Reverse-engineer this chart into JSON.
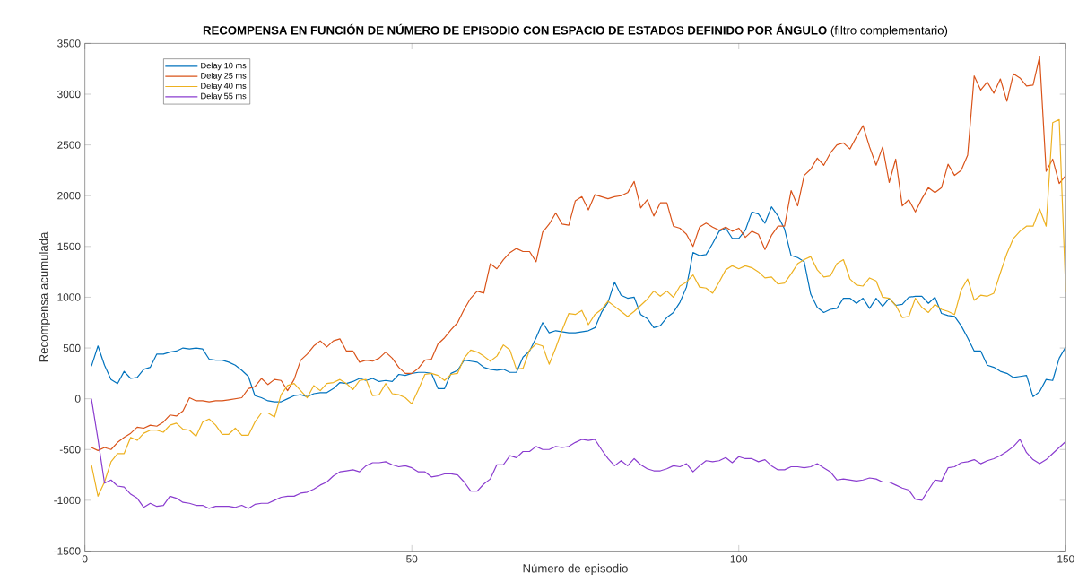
{
  "chart_data": {
    "type": "line",
    "title": "**RECOMPENSA EN FUNCIÓN DE NÚMERO DE EPISODIO CON ESPACIO DE ESTADOS DEFINIDO POR ÁNGULO** (filtro complementario)",
    "xlabel": "Número de episodio",
    "ylabel": "Recompensa acumulada",
    "x": [
      1,
      2,
      3,
      4,
      5,
      6,
      7,
      8,
      9,
      10,
      11,
      12,
      13,
      14,
      15,
      16,
      17,
      18,
      19,
      20,
      21,
      22,
      23,
      24,
      25,
      26,
      27,
      28,
      29,
      30,
      31,
      32,
      33,
      34,
      35,
      36,
      37,
      38,
      39,
      40,
      41,
      42,
      43,
      44,
      45,
      46,
      47,
      48,
      49,
      50,
      51,
      52,
      53,
      54,
      55,
      56,
      57,
      58,
      59,
      60,
      61,
      62,
      63,
      64,
      65,
      66,
      67,
      68,
      69,
      70,
      71,
      72,
      73,
      74,
      75,
      76,
      77,
      78,
      79,
      80,
      81,
      82,
      83,
      84,
      85,
      86,
      87,
      88,
      89,
      90,
      91,
      92,
      93,
      94,
      95,
      96,
      97,
      98,
      99,
      100,
      101,
      102,
      103,
      104,
      105,
      106,
      107,
      108,
      109,
      110,
      111,
      112,
      113,
      114,
      115,
      116,
      117,
      118,
      119,
      120,
      121,
      122,
      123,
      124,
      125,
      126,
      127,
      128,
      129,
      130,
      131,
      132,
      133,
      134,
      135,
      136,
      137,
      138,
      139,
      140,
      141,
      142,
      143,
      144,
      145,
      146,
      147,
      148,
      149,
      150
    ],
    "series": [
      {
        "name": "Delay 10 ms",
        "color": "#0072bd",
        "values": [
          320,
          520,
          330,
          190,
          150,
          270,
          200,
          210,
          290,
          310,
          440,
          440,
          460,
          470,
          500,
          490,
          500,
          490,
          390,
          380,
          380,
          360,
          330,
          280,
          220,
          30,
          10,
          -20,
          -30,
          -30,
          0,
          30,
          40,
          20,
          50,
          60,
          60,
          100,
          160,
          150,
          170,
          200,
          180,
          200,
          170,
          180,
          170,
          240,
          230,
          250,
          260,
          260,
          250,
          100,
          100,
          250,
          280,
          380,
          370,
          360,
          310,
          290,
          280,
          290,
          260,
          260,
          410,
          470,
          600,
          750,
          650,
          670,
          660,
          650,
          650,
          660,
          670,
          700,
          850,
          950,
          1150,
          1020,
          990,
          1000,
          830,
          790,
          700,
          720,
          800,
          850,
          950,
          1100,
          1440,
          1410,
          1420,
          1530,
          1650,
          1680,
          1580,
          1580,
          1660,
          1840,
          1820,
          1730,
          1890,
          1800,
          1670,
          1410,
          1390,
          1350,
          1030,
          900,
          850,
          880,
          890,
          990,
          990,
          940,
          990,
          890,
          990,
          910,
          990,
          920,
          930,
          1000,
          1010,
          1010,
          940,
          1000,
          840,
          820,
          810,
          720,
          600,
          470,
          470,
          330,
          310,
          270,
          250,
          210,
          220,
          230,
          20,
          70,
          190,
          180,
          400,
          510
        ]
      },
      {
        "name": "Delay 25 ms",
        "color": "#d95319",
        "values": [
          -480,
          -510,
          -480,
          -500,
          -430,
          -380,
          -340,
          -280,
          -290,
          -260,
          -270,
          -230,
          -160,
          -170,
          -120,
          10,
          -20,
          -20,
          -30,
          -20,
          -20,
          -10,
          0,
          10,
          100,
          120,
          200,
          140,
          190,
          180,
          80,
          190,
          380,
          440,
          520,
          570,
          510,
          570,
          590,
          470,
          470,
          360,
          380,
          370,
          400,
          460,
          400,
          310,
          250,
          250,
          300,
          380,
          390,
          540,
          600,
          680,
          750,
          880,
          990,
          1060,
          1040,
          1330,
          1280,
          1370,
          1440,
          1480,
          1450,
          1450,
          1350,
          1640,
          1720,
          1830,
          1720,
          1710,
          1950,
          1990,
          1860,
          2010,
          1990,
          1970,
          1990,
          2000,
          2030,
          2140,
          1880,
          1960,
          1800,
          1930,
          1930,
          1700,
          1680,
          1620,
          1500,
          1690,
          1730,
          1690,
          1660,
          1690,
          1650,
          1680,
          1590,
          1650,
          1620,
          1470,
          1610,
          1700,
          1700,
          2050,
          1900,
          2200,
          2260,
          2370,
          2300,
          2420,
          2500,
          2520,
          2460,
          2580,
          2690,
          2480,
          2300,
          2480,
          2130,
          2360,
          1900,
          1960,
          1840,
          1970,
          2080,
          2030,
          2080,
          2310,
          2200,
          2250,
          2400,
          3180,
          3040,
          3120,
          3010,
          3150,
          2930,
          3200,
          3160,
          3080,
          3090,
          3370,
          2240,
          2360,
          2120,
          2200
        ]
      },
      {
        "name": "Delay 40 ms",
        "color": "#edb120",
        "values": [
          -650,
          -960,
          -820,
          -620,
          -540,
          -540,
          -380,
          -410,
          -340,
          -310,
          -310,
          -330,
          -260,
          -240,
          -300,
          -310,
          -370,
          -230,
          -200,
          -260,
          -350,
          -350,
          -290,
          -360,
          -360,
          -230,
          -140,
          -140,
          -180,
          40,
          130,
          150,
          80,
          10,
          130,
          80,
          150,
          160,
          190,
          150,
          90,
          180,
          190,
          30,
          40,
          150,
          50,
          40,
          10,
          -50,
          90,
          240,
          250,
          230,
          180,
          240,
          250,
          400,
          480,
          460,
          420,
          370,
          420,
          530,
          480,
          290,
          300,
          480,
          540,
          520,
          340,
          500,
          680,
          840,
          830,
          870,
          730,
          830,
          880,
          960,
          910,
          860,
          810,
          860,
          920,
          980,
          1060,
          1010,
          1060,
          1000,
          1110,
          1150,
          1220,
          1100,
          1090,
          1040,
          1150,
          1270,
          1310,
          1280,
          1310,
          1290,
          1250,
          1190,
          1200,
          1130,
          1140,
          1230,
          1330,
          1370,
          1400,
          1270,
          1200,
          1210,
          1330,
          1370,
          1180,
          1120,
          1110,
          1190,
          1160,
          1000,
          990,
          920,
          800,
          810,
          990,
          900,
          850,
          930,
          880,
          860,
          830,
          1070,
          1180,
          970,
          1020,
          1010,
          1040,
          1240,
          1430,
          1580,
          1650,
          1700,
          1700,
          1870,
          1700,
          2720,
          2750,
          1050
        ]
      },
      {
        "name": "Delay 55 ms",
        "color": "#8a3ccf",
        "values": [
          0,
          -400,
          -830,
          -800,
          -860,
          -870,
          -940,
          -980,
          -1070,
          -1030,
          -1060,
          -1050,
          -960,
          -980,
          -1020,
          -1030,
          -1050,
          -1050,
          -1080,
          -1060,
          -1060,
          -1060,
          -1070,
          -1050,
          -1080,
          -1040,
          -1030,
          -1030,
          -1000,
          -970,
          -960,
          -960,
          -930,
          -920,
          -890,
          -850,
          -820,
          -760,
          -720,
          -710,
          -700,
          -720,
          -660,
          -630,
          -630,
          -620,
          -650,
          -670,
          -660,
          -680,
          -720,
          -720,
          -770,
          -760,
          -740,
          -740,
          -750,
          -820,
          -910,
          -910,
          -840,
          -790,
          -650,
          -650,
          -560,
          -580,
          -520,
          -520,
          -470,
          -500,
          -500,
          -470,
          -480,
          -470,
          -430,
          -400,
          -410,
          -400,
          -500,
          -590,
          -660,
          -610,
          -660,
          -590,
          -650,
          -690,
          -710,
          -710,
          -690,
          -660,
          -670,
          -640,
          -720,
          -660,
          -610,
          -620,
          -610,
          -580,
          -630,
          -570,
          -590,
          -590,
          -620,
          -600,
          -660,
          -700,
          -700,
          -670,
          -670,
          -680,
          -670,
          -640,
          -680,
          -720,
          -800,
          -790,
          -800,
          -810,
          -800,
          -780,
          -790,
          -820,
          -820,
          -850,
          -880,
          -900,
          -990,
          -1000,
          -900,
          -800,
          -810,
          -680,
          -670,
          -630,
          -620,
          -600,
          -640,
          -610,
          -590,
          -560,
          -520,
          -470,
          -400,
          -530,
          -600,
          -640,
          -600,
          -540,
          -480,
          -420
        ]
      }
    ],
    "xlim": [
      0,
      150
    ],
    "xticks": [
      0,
      50,
      100,
      150
    ],
    "ylim": [
      -1500,
      3500
    ],
    "yticks": [
      -1500,
      -1000,
      -500,
      0,
      500,
      1000,
      1500,
      2000,
      2500,
      3000,
      3500
    ],
    "grid": false,
    "legend": "top left",
    "marker": "none",
    "line_style": "solid"
  }
}
